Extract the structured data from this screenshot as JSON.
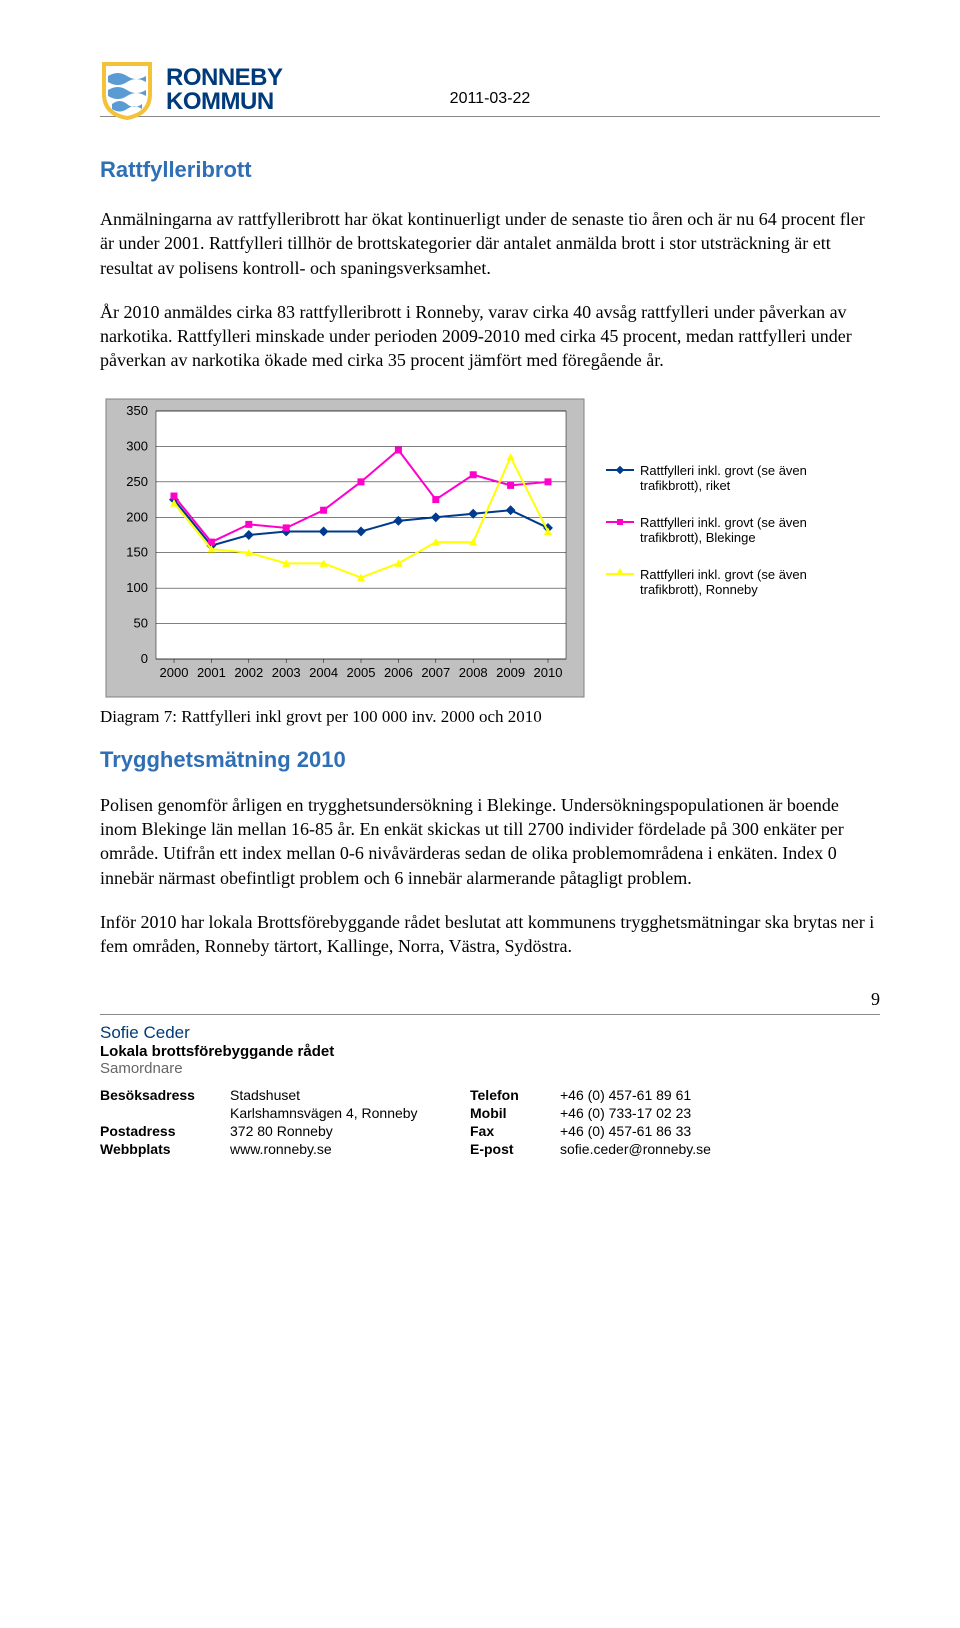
{
  "header": {
    "org_line1": "RONNEBY",
    "org_line2": "KOMMUN",
    "date": "2011-03-22",
    "logo_colors": {
      "shield_border": "#f3c13a",
      "shield_fill": "#ffffff",
      "waves": "#3a7fc4"
    }
  },
  "section1": {
    "title": "Rattfylleribrott",
    "p1": "Anmälningarna av rattfylleribrott har ökat kontinuerligt under de senaste tio åren och är nu 64 procent fler är under 2001. Rattfylleri tillhör de brottskategorier där antalet anmälda brott i stor utsträckning är ett resultat av polisens kontroll- och spaningsverksamhet.",
    "p2": "År 2010 anmäldes cirka 83 rattfylleribrott i Ronneby, varav cirka 40 avsåg rattfylleri under påverkan av narkotika. Rattfylleri minskade under perioden 2009-2010 med cirka 45 procent, medan rattfylleri under påverkan av narkotika ökade med cirka 35 procent jämfört med föregående år."
  },
  "chart": {
    "type": "line",
    "background_color": "#c0c0c0",
    "plot_bg": "#ffffff",
    "grid_color": "#000000",
    "border_color": "#808080",
    "ylim": [
      0,
      350
    ],
    "ytick_step": 50,
    "yticks": [
      "0",
      "50",
      "100",
      "150",
      "200",
      "250",
      "300",
      "350"
    ],
    "xlabels": [
      "2000",
      "2001",
      "2002",
      "2003",
      "2004",
      "2005",
      "2006",
      "2007",
      "2008",
      "2009",
      "2010"
    ],
    "tick_fontsize": 13,
    "series": [
      {
        "name": "riket",
        "label": "Rattfylleri inkl. grovt (se även trafikbrott), riket",
        "color": "#003a8c",
        "marker": "diamond",
        "values": [
          225,
          160,
          175,
          180,
          180,
          180,
          195,
          200,
          205,
          210,
          185
        ]
      },
      {
        "name": "blekinge",
        "label": "Rattfylleri inkl. grovt (se även trafikbrott), Blekinge",
        "color": "#ff00cc",
        "marker": "square",
        "values": [
          230,
          165,
          190,
          185,
          210,
          250,
          295,
          225,
          260,
          245,
          250
        ]
      },
      {
        "name": "ronneby",
        "label": "Rattfylleri inkl. grovt (se även trafikbrott), Ronneby",
        "color": "#ffff00",
        "marker": "triangle",
        "values": [
          220,
          155,
          150,
          135,
          135,
          115,
          135,
          165,
          165,
          285,
          180
        ]
      }
    ],
    "caption": "Diagram 7: Rattfylleri inkl grovt per 100 000 inv. 2000 och 2010"
  },
  "section2": {
    "title": "Trygghetsmätning 2010",
    "p1": "Polisen genomför årligen en trygghetsundersökning i Blekinge. Undersökningspopulationen är boende inom Blekinge län mellan 16-85 år. En enkät skickas ut till 2700 individer fördelade på 300 enkäter per område. Utifrån ett index mellan 0-6 nivåvärderas sedan de olika problemområdena i enkäten. Index 0 innebär närmast obefintligt problem och 6 innebär alarmerande påtagligt problem.",
    "p2": "Inför 2010 har lokala Brottsförebyggande rådet beslutat att kommunens trygghetsmätningar ska brytas ner i fem områden, Ronneby tärtort, Kallinge, Norra, Västra, Sydöstra."
  },
  "page_number": "9",
  "signatory": {
    "name": "Sofie Ceder",
    "role": "Lokala brottsförebyggande rådet",
    "title": "Samordnare"
  },
  "contact": {
    "rows": [
      [
        "Besöksadress",
        "Stadshuset",
        "Telefon",
        "+46 (0) 457-61 89 61"
      ],
      [
        "",
        "Karlshamnsvägen 4, Ronneby",
        "Mobil",
        "+46 (0) 733-17 02 23"
      ],
      [
        "Postadress",
        "372 80 Ronneby",
        "Fax",
        "+46 (0) 457-61 86 33"
      ],
      [
        "Webbplats",
        "www.ronneby.se",
        "E-post",
        "sofie.ceder@ronneby.se"
      ]
    ]
  }
}
